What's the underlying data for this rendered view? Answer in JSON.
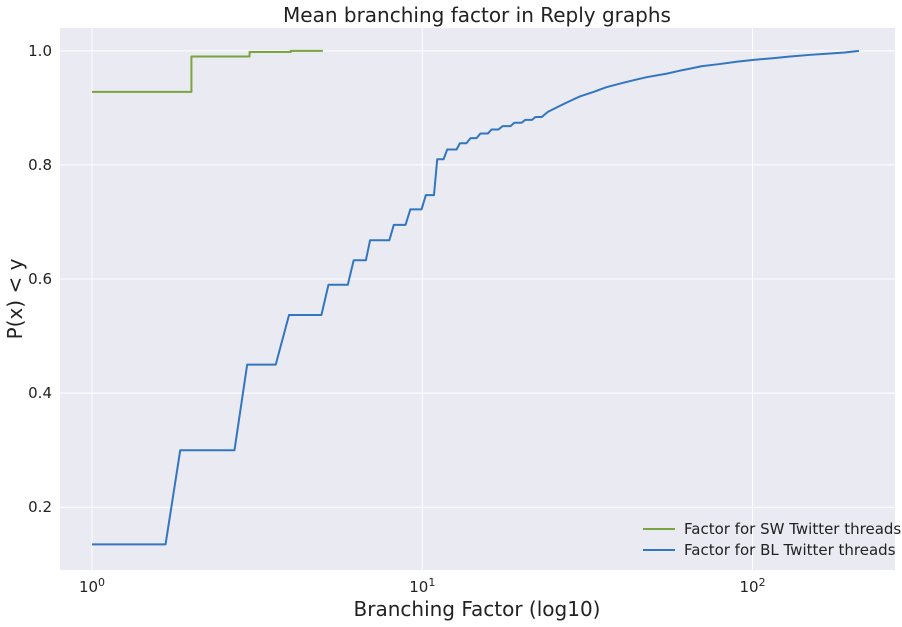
{
  "chart_data": {
    "type": "line",
    "title": "Mean branching factor in Reply graphs",
    "xlabel": "Branching Factor (log10)",
    "ylabel": "P(x) < y",
    "xscale": "log",
    "xlim": [
      0.8,
      270
    ],
    "ylim": [
      0.09,
      1.04
    ],
    "x_ticks": [
      {
        "value": 1,
        "base": "10",
        "exp": "0"
      },
      {
        "value": 10,
        "base": "10",
        "exp": "1"
      },
      {
        "value": 100,
        "base": "10",
        "exp": "2"
      }
    ],
    "y_ticks": [
      {
        "value": 0.2,
        "label": "0.2"
      },
      {
        "value": 0.4,
        "label": "0.4"
      },
      {
        "value": 0.6,
        "label": "0.6"
      },
      {
        "value": 0.8,
        "label": "0.8"
      },
      {
        "value": 1.0,
        "label": "1.0"
      }
    ],
    "grid": true,
    "background": "#eaeaf2",
    "legend_position": "lower-right",
    "series": [
      {
        "name": "Factor for SW Twitter threads",
        "color": "#7aa43e",
        "x": [
          1.0,
          2.0,
          2.0,
          3.0,
          3.0,
          4.0,
          4.0,
          5.0
        ],
        "y": [
          0.928,
          0.928,
          0.99,
          0.99,
          0.998,
          0.998,
          1.0,
          1.0
        ]
      },
      {
        "name": "Factor for BL Twitter threads",
        "color": "#3276c2",
        "x": [
          1.0,
          1.67,
          1.85,
          2.7,
          2.95,
          3.6,
          3.95,
          4.95,
          5.2,
          5.95,
          6.2,
          6.75,
          6.95,
          7.95,
          8.2,
          8.9,
          9.2,
          9.95,
          10.25,
          10.85,
          11.1,
          11.6,
          11.9,
          12.7,
          13.0,
          13.6,
          14.0,
          14.6,
          15.0,
          15.8,
          16.2,
          17.0,
          17.5,
          18.5,
          19.0,
          20.0,
          20.5,
          21.5,
          22.0,
          23.0,
          24.0,
          26.0,
          28.0,
          30.0,
          33.0,
          36.0,
          40.0,
          44.0,
          48.0,
          55.0,
          60.0,
          65.0,
          70.0,
          80.0,
          90.0,
          100.0,
          115.0,
          130.0,
          150.0,
          170.0,
          190.0,
          210.0
        ],
        "y": [
          0.135,
          0.135,
          0.3,
          0.3,
          0.45,
          0.45,
          0.537,
          0.537,
          0.59,
          0.59,
          0.633,
          0.633,
          0.668,
          0.668,
          0.695,
          0.695,
          0.722,
          0.722,
          0.747,
          0.747,
          0.81,
          0.81,
          0.827,
          0.827,
          0.838,
          0.838,
          0.847,
          0.847,
          0.855,
          0.855,
          0.862,
          0.862,
          0.868,
          0.868,
          0.874,
          0.874,
          0.879,
          0.879,
          0.884,
          0.884,
          0.893,
          0.903,
          0.912,
          0.92,
          0.928,
          0.936,
          0.943,
          0.949,
          0.954,
          0.96,
          0.965,
          0.969,
          0.973,
          0.977,
          0.981,
          0.984,
          0.987,
          0.99,
          0.993,
          0.995,
          0.997,
          1.0
        ]
      }
    ]
  }
}
